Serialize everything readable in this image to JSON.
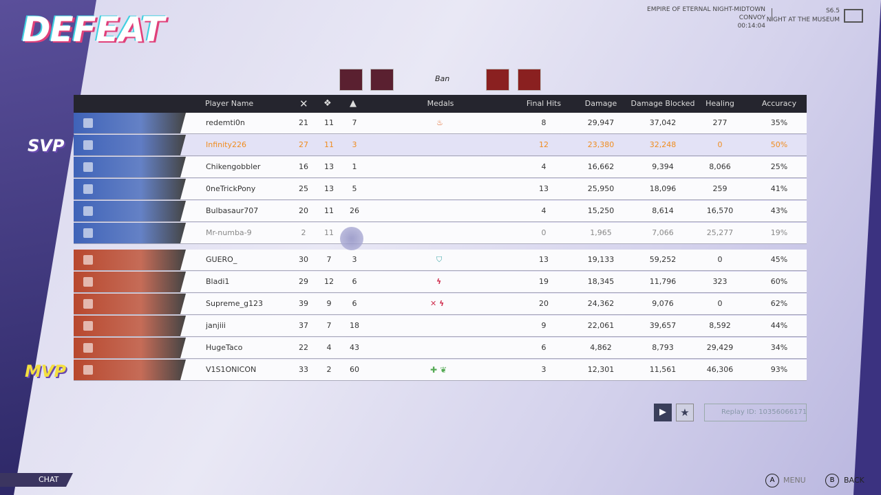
{
  "header": {
    "result": "DEFEAT",
    "map": "EMPIRE OF ETERNAL NIGHT-MIDTOWN",
    "mode": "CONVOY",
    "time": "00:14:04",
    "season": "S6.5",
    "season_name": "NIGHT AT THE MUSEUM"
  },
  "ban_label": "Ban",
  "table": {
    "columns": {
      "name": "Player Name",
      "medals": "Medals",
      "final_hits": "Final Hits",
      "damage": "Damage",
      "blocked": "Damage Blocked",
      "healing": "Healing",
      "accuracy": "Accuracy"
    },
    "teams": [
      {
        "color": "#3f63b8",
        "badge": "SVP",
        "rows": [
          {
            "name": "redemti0n",
            "kills": "21",
            "deaths": "11",
            "assists": "7",
            "final_hits": "8",
            "damage": "29,947",
            "blocked": "37,042",
            "healing": "277",
            "accuracy": "35%"
          },
          {
            "name": "Infinity226",
            "kills": "27",
            "deaths": "11",
            "assists": "3",
            "final_hits": "12",
            "damage": "23,380",
            "blocked": "32,248",
            "healing": "0",
            "accuracy": "50%",
            "highlighted": true
          },
          {
            "name": "Chikengobbler",
            "kills": "16",
            "deaths": "13",
            "assists": "1",
            "final_hits": "4",
            "damage": "16,662",
            "blocked": "9,394",
            "healing": "8,066",
            "accuracy": "25%"
          },
          {
            "name": "0neTrickPony",
            "kills": "25",
            "deaths": "13",
            "assists": "5",
            "final_hits": "13",
            "damage": "25,950",
            "blocked": "18,096",
            "healing": "259",
            "accuracy": "41%"
          },
          {
            "name": "Bulbasaur707",
            "kills": "20",
            "deaths": "11",
            "assists": "26",
            "final_hits": "4",
            "damage": "15,250",
            "blocked": "8,614",
            "healing": "16,570",
            "accuracy": "43%"
          },
          {
            "name": "Mr-numba-9",
            "kills": "2",
            "deaths": "11",
            "final_hits": "0",
            "damage": "1,965",
            "blocked": "7,066",
            "healing": "25,277",
            "accuracy": "19%",
            "faded": true
          }
        ]
      },
      {
        "color": "#b8482e",
        "badge": "MVP",
        "rows": [
          {
            "name": "GUERO_",
            "kills": "30",
            "deaths": "7",
            "assists": "3",
            "final_hits": "13",
            "damage": "19,133",
            "blocked": "59,252",
            "healing": "0",
            "accuracy": "45%"
          },
          {
            "name": "Bladi1",
            "kills": "29",
            "deaths": "12",
            "assists": "6",
            "final_hits": "19",
            "damage": "18,345",
            "blocked": "11,796",
            "healing": "323",
            "accuracy": "60%"
          },
          {
            "name": "Supreme_g123",
            "kills": "39",
            "deaths": "9",
            "assists": "6",
            "final_hits": "20",
            "damage": "24,362",
            "blocked": "9,076",
            "healing": "0",
            "accuracy": "62%"
          },
          {
            "name": "janjiii",
            "kills": "37",
            "deaths": "7",
            "assists": "18",
            "final_hits": "9",
            "damage": "22,061",
            "blocked": "39,657",
            "healing": "8,592",
            "accuracy": "44%"
          },
          {
            "name": "HugeTaco",
            "kills": "22",
            "deaths": "4",
            "assists": "43",
            "final_hits": "6",
            "damage": "4,862",
            "blocked": "8,793",
            "healing": "29,429",
            "accuracy": "34%"
          },
          {
            "name": "V1S1ONICON",
            "kills": "33",
            "deaths": "2",
            "assists": "60",
            "final_hits": "3",
            "damage": "12,301",
            "blocked": "11,561",
            "healing": "46,306",
            "accuracy": "93%"
          }
        ]
      }
    ]
  },
  "replay": "Replay ID: 10356066171",
  "footer": {
    "chat": "CHAT",
    "menu_key": "A",
    "menu": "MENU",
    "back_key": "B",
    "back": "BACK"
  }
}
